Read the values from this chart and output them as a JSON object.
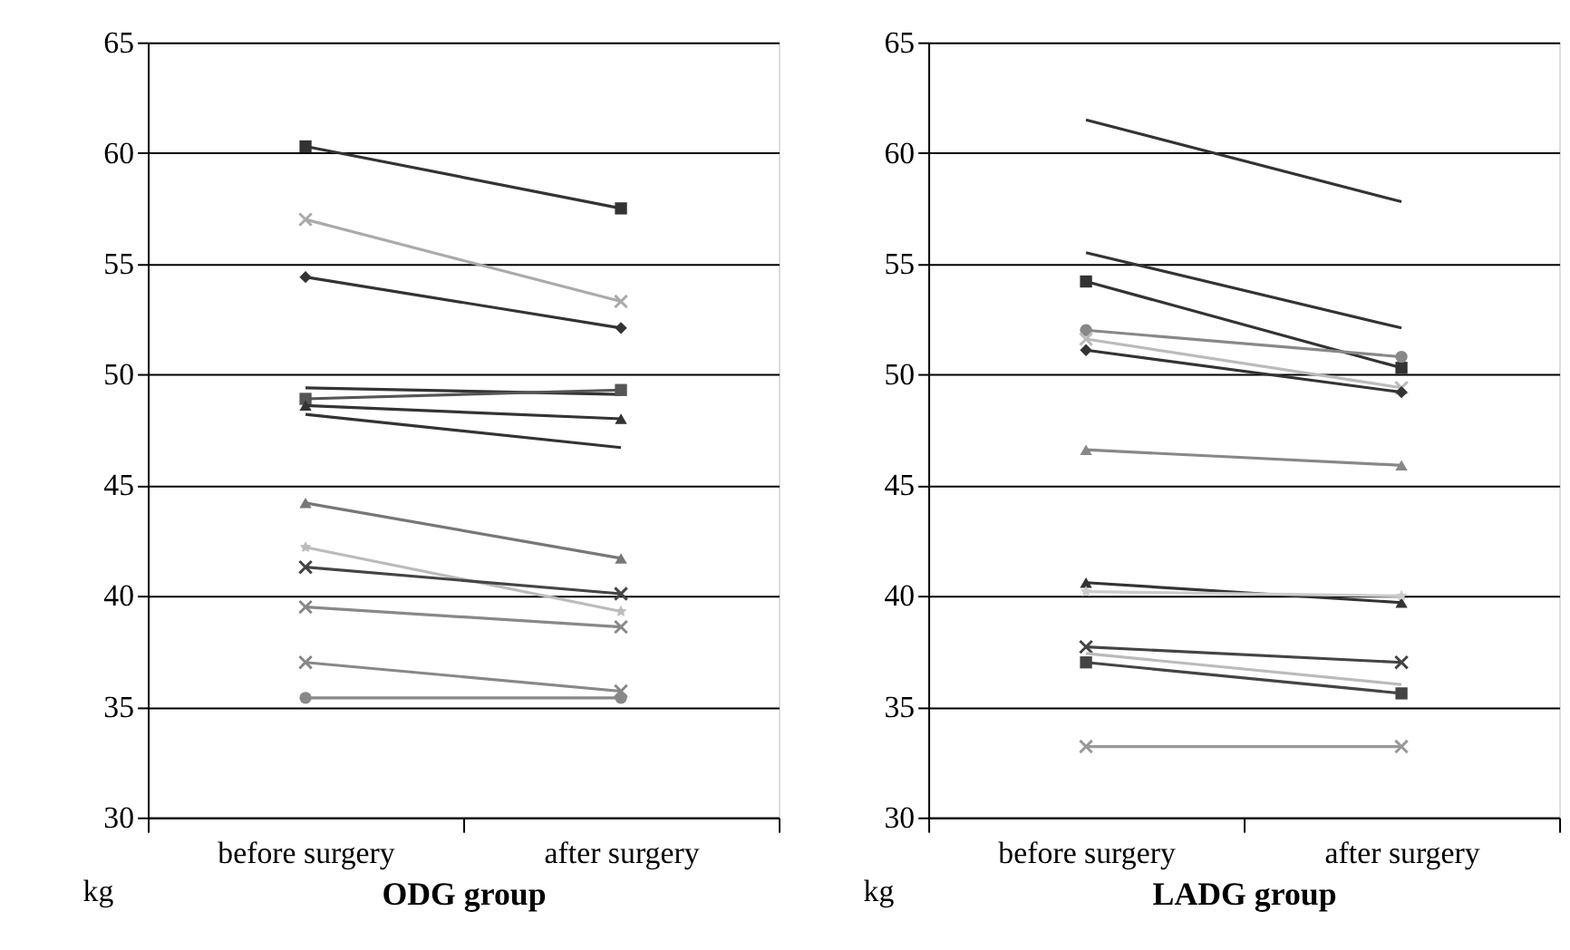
{
  "chart_data": [
    {
      "type": "line",
      "xlabel": "ODG group",
      "ylabel": "kg",
      "categories": [
        "before surgery",
        "after surgery"
      ],
      "ylim": [
        30,
        65
      ],
      "yticks": [
        30,
        35,
        40,
        45,
        50,
        55,
        60,
        65
      ],
      "grid": "y",
      "line_style": "solid",
      "series": [
        {
          "color": "#333333",
          "marker": "square",
          "values": [
            60.3,
            57.5
          ]
        },
        {
          "color": "#aaaaaa",
          "marker": "cross",
          "values": [
            57.0,
            53.3
          ]
        },
        {
          "color": "#333333",
          "marker": "diamond",
          "values": [
            54.4,
            52.1
          ]
        },
        {
          "color": "#333333",
          "marker": "none",
          "values": [
            49.4,
            49.1
          ]
        },
        {
          "color": "#555555",
          "marker": "square",
          "values": [
            48.9,
            49.3
          ]
        },
        {
          "color": "#333333",
          "marker": "triangle",
          "values": [
            48.6,
            48.0
          ]
        },
        {
          "color": "#333333",
          "marker": "none",
          "values": [
            48.2,
            46.7
          ]
        },
        {
          "color": "#777777",
          "marker": "triangle",
          "values": [
            44.2,
            41.7
          ]
        },
        {
          "color": "#bbbbbb",
          "marker": "star",
          "values": [
            42.2,
            39.3
          ]
        },
        {
          "color": "#444444",
          "marker": "cross",
          "values": [
            41.3,
            40.1
          ]
        },
        {
          "color": "#888888",
          "marker": "cross",
          "values": [
            39.5,
            38.6
          ]
        },
        {
          "color": "#888888",
          "marker": "cross",
          "values": [
            37.0,
            35.7
          ]
        },
        {
          "color": "#888888",
          "marker": "circle",
          "values": [
            35.4,
            35.4
          ]
        }
      ]
    },
    {
      "type": "line",
      "xlabel": "LADG group",
      "ylabel": "kg",
      "categories": [
        "before surgery",
        "after surgery"
      ],
      "ylim": [
        30,
        65
      ],
      "yticks": [
        30,
        35,
        40,
        45,
        50,
        55,
        60,
        65
      ],
      "grid": "y",
      "line_style": "solid",
      "series": [
        {
          "color": "#333333",
          "marker": "none",
          "values": [
            61.5,
            57.8
          ]
        },
        {
          "color": "#333333",
          "marker": "none",
          "values": [
            55.5,
            52.1
          ]
        },
        {
          "color": "#333333",
          "marker": "square",
          "values": [
            54.2,
            50.3
          ]
        },
        {
          "color": "#888888",
          "marker": "circle",
          "values": [
            52.0,
            50.8
          ]
        },
        {
          "color": "#bbbbbb",
          "marker": "cross",
          "values": [
            51.6,
            49.4
          ]
        },
        {
          "color": "#333333",
          "marker": "diamond",
          "values": [
            51.1,
            49.2
          ]
        },
        {
          "color": "#888888",
          "marker": "triangle",
          "values": [
            46.6,
            45.9
          ]
        },
        {
          "color": "#333333",
          "marker": "triangle",
          "values": [
            40.6,
            39.7
          ]
        },
        {
          "color": "#cccccc",
          "marker": "star",
          "values": [
            40.2,
            40.0
          ]
        },
        {
          "color": "#444444",
          "marker": "cross",
          "values": [
            37.7,
            37.0
          ]
        },
        {
          "color": "#bbbbbb",
          "marker": "none",
          "values": [
            37.4,
            36.0
          ]
        },
        {
          "color": "#444444",
          "marker": "square",
          "values": [
            37.0,
            35.6
          ]
        },
        {
          "color": "#999999",
          "marker": "cross",
          "values": [
            33.2,
            33.2
          ]
        }
      ]
    }
  ]
}
